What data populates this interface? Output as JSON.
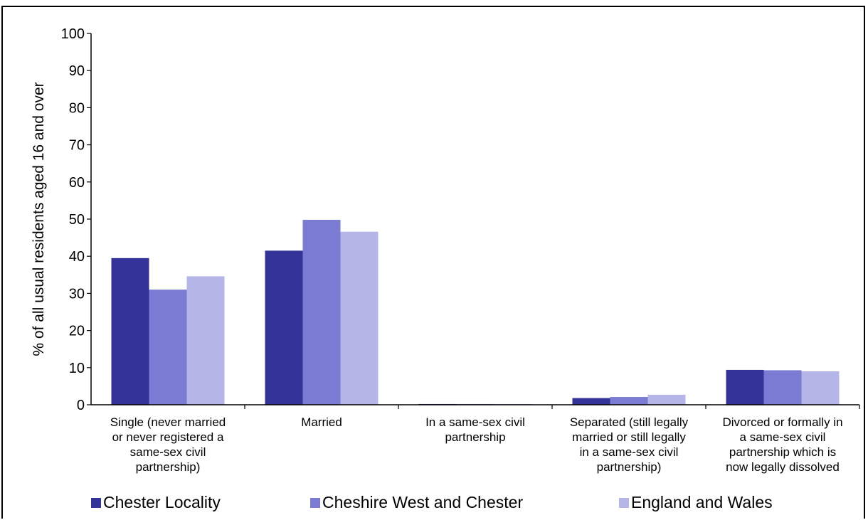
{
  "chart_data": {
    "type": "bar",
    "title": "",
    "ylabel": "% of all usual residents aged 16 and over",
    "xlabel": "",
    "ylim": [
      0,
      100
    ],
    "yticks": [
      0,
      10,
      20,
      30,
      40,
      50,
      60,
      70,
      80,
      90,
      100
    ],
    "grid": false,
    "legend_position": "bottom",
    "categories": [
      [
        "Single (never married",
        "or never registered a",
        "same-sex civil",
        "partnership)"
      ],
      [
        "Married"
      ],
      [
        "In a same-sex civil",
        "partnership"
      ],
      [
        "Separated (still legally",
        "married or still legally",
        "in a same-sex civil",
        "partnership)"
      ],
      [
        "Divorced or formally in",
        "a same-sex civil",
        "partnership which is",
        "now legally dissolved"
      ]
    ],
    "series": [
      {
        "name": "Chester Locality",
        "color": "#333399",
        "values": [
          39.5,
          41.5,
          0.2,
          1.8,
          9.4
        ]
      },
      {
        "name": "Cheshire West and Chester",
        "color": "#7b7bd4",
        "values": [
          31.0,
          49.8,
          0.2,
          2.1,
          9.3
        ]
      },
      {
        "name": "England and Wales",
        "color": "#b5b5e8",
        "values": [
          34.6,
          46.6,
          0.2,
          2.7,
          9.0
        ]
      }
    ]
  }
}
